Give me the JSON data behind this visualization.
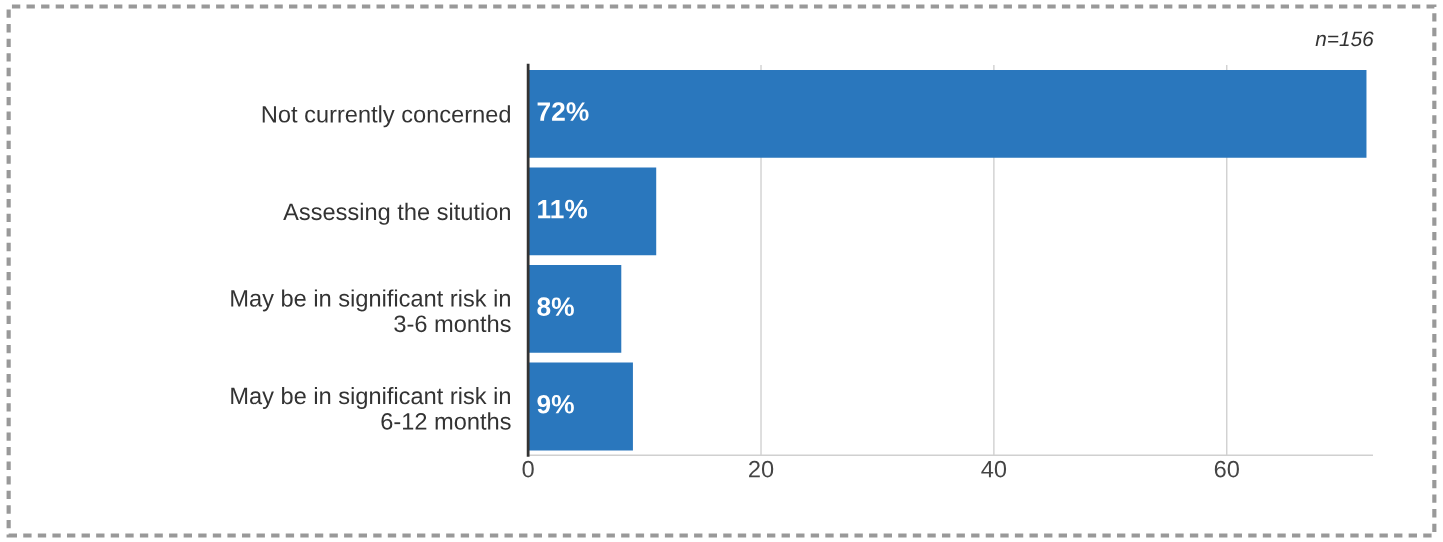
{
  "chart_data": {
    "type": "bar",
    "orientation": "horizontal",
    "categories": [
      "Not currently concerned",
      "Assessing the sitution",
      "May be in significant risk in\n3-6 months",
      "May be in significant risk in\n6-12 months"
    ],
    "values": [
      72,
      11,
      8,
      9
    ],
    "value_labels": [
      "72%",
      "11%",
      "8%",
      "9%"
    ],
    "color": "#2a77bd",
    "xlim": [
      0,
      72.5
    ],
    "xticks": [
      0,
      20,
      40,
      60
    ],
    "grid": "x",
    "legend": false,
    "annotations": [
      "n=156"
    ]
  }
}
